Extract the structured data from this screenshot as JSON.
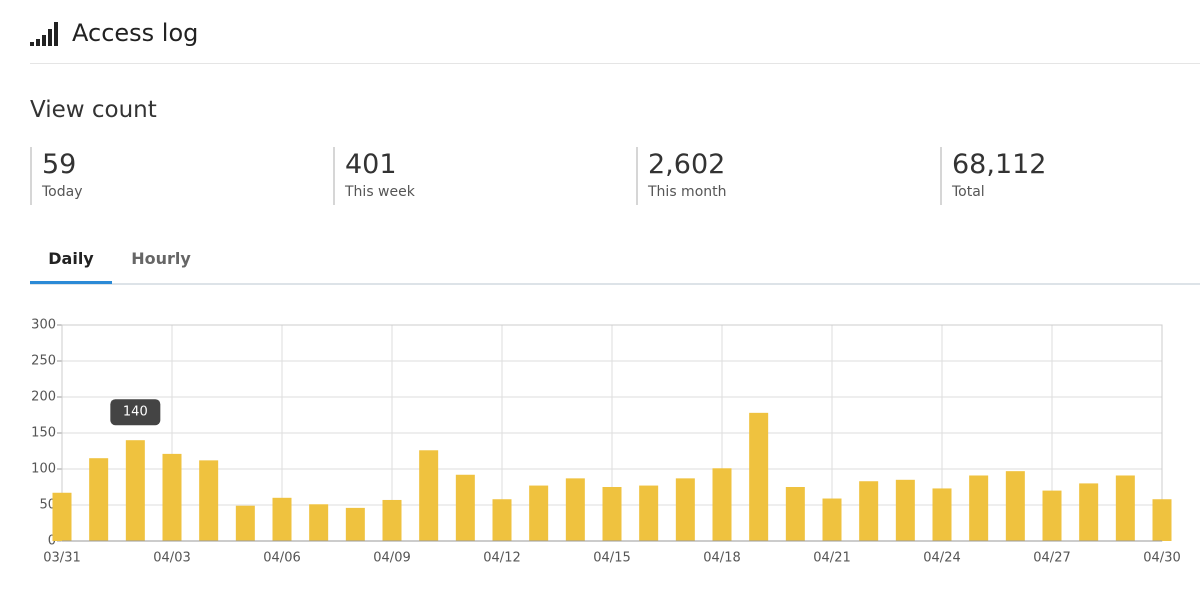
{
  "header": {
    "title": "Access log"
  },
  "section": {
    "title": "View count"
  },
  "stats": [
    {
      "value": "59",
      "label": "Today"
    },
    {
      "value": "401",
      "label": "This week"
    },
    {
      "value": "2,602",
      "label": "This month"
    },
    {
      "value": "68,112",
      "label": "Total"
    }
  ],
  "tabs": [
    "Daily",
    "Hourly"
  ],
  "chart_data": {
    "type": "bar",
    "categories": [
      "03/31",
      null,
      null,
      "04/03",
      null,
      null,
      "04/06",
      null,
      null,
      "04/09",
      null,
      null,
      "04/12",
      null,
      null,
      "04/15",
      null,
      null,
      "04/18",
      null,
      null,
      "04/21",
      null,
      null,
      "04/24",
      null,
      null,
      "04/27",
      null,
      null,
      "04/30"
    ],
    "values": [
      67,
      115,
      140,
      121,
      112,
      49,
      60,
      51,
      46,
      57,
      126,
      92,
      58,
      77,
      87,
      75,
      77,
      87,
      101,
      178,
      75,
      59,
      83,
      85,
      73,
      91,
      97,
      70,
      80,
      91,
      58
    ],
    "color": "#efc23f",
    "ylim": [
      0,
      300
    ],
    "yticks": [
      0,
      50,
      100,
      150,
      200,
      250,
      300
    ],
    "grid": true
  }
}
